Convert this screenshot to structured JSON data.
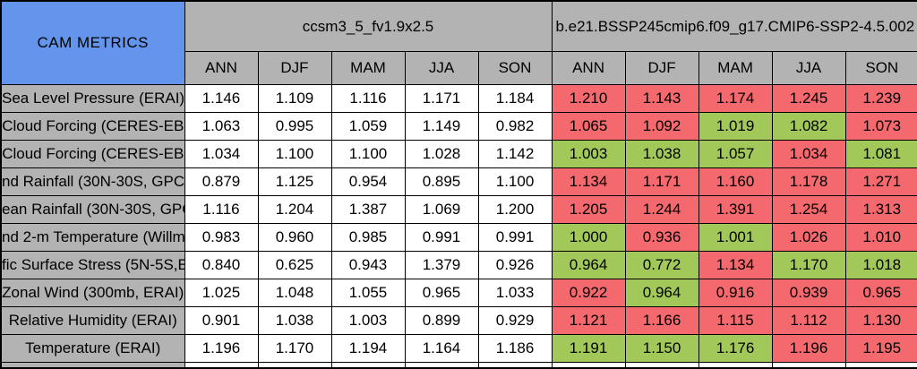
{
  "chart_data": {
    "type": "table",
    "title": "CAM METRICS",
    "column_groups": [
      "ccsm3_5_fv1.9x2.5",
      "b.e21.BSSP245cmip6.f09_g17.CMIP6-SSP2-4.5.002"
    ],
    "seasons": [
      "ANN",
      "DJF",
      "MAM",
      "JJA",
      "SON"
    ],
    "colors": {
      "header_blue": "#6495ed",
      "header_gray": "#b3b3b3",
      "cell_white": "#ffffff",
      "worse_red": "#f4696d",
      "better_green": "#a2c85a",
      "border": "#000000",
      "text": "#000000"
    },
    "rows": [
      {
        "label": "Sea Level Pressure (ERAI)",
        "control": [
          "1.146",
          "1.109",
          "1.116",
          "1.171",
          "1.184"
        ],
        "test": [
          "1.210",
          "1.143",
          "1.174",
          "1.245",
          "1.239"
        ],
        "test_colors": [
          "red",
          "red",
          "red",
          "red",
          "red"
        ]
      },
      {
        "label": "Cloud Forcing (CERES-EB",
        "control": [
          "1.063",
          "0.995",
          "1.059",
          "1.149",
          "0.982"
        ],
        "test": [
          "1.065",
          "1.092",
          "1.019",
          "1.082",
          "1.073"
        ],
        "test_colors": [
          "red",
          "red",
          "green",
          "green",
          "red"
        ]
      },
      {
        "label": "Cloud Forcing (CERES-EB",
        "control": [
          "1.034",
          "1.100",
          "1.100",
          "1.028",
          "1.142"
        ],
        "test": [
          "1.003",
          "1.038",
          "1.057",
          "1.034",
          "1.081"
        ],
        "test_colors": [
          "green",
          "green",
          "green",
          "red",
          "green"
        ]
      },
      {
        "label": "nd Rainfall (30N-30S, GPC",
        "control": [
          "0.879",
          "1.125",
          "0.954",
          "0.895",
          "1.100"
        ],
        "test": [
          "1.134",
          "1.171",
          "1.160",
          "1.178",
          "1.271"
        ],
        "test_colors": [
          "red",
          "red",
          "red",
          "red",
          "red"
        ]
      },
      {
        "label": "ean Rainfall (30N-30S, GPC",
        "control": [
          "1.116",
          "1.204",
          "1.387",
          "1.069",
          "1.200"
        ],
        "test": [
          "1.205",
          "1.244",
          "1.391",
          "1.254",
          "1.313"
        ],
        "test_colors": [
          "red",
          "red",
          "red",
          "red",
          "red"
        ]
      },
      {
        "label": "nd 2-m Temperature (Willm",
        "control": [
          "0.983",
          "0.960",
          "0.985",
          "0.991",
          "0.991"
        ],
        "test": [
          "1.000",
          "0.936",
          "1.001",
          "1.026",
          "1.010"
        ],
        "test_colors": [
          "green",
          "red",
          "green",
          "red",
          "red"
        ]
      },
      {
        "label": "fic Surface Stress (5N-5S,E",
        "control": [
          "0.840",
          "0.625",
          "0.943",
          "1.379",
          "0.926"
        ],
        "test": [
          "0.964",
          "0.772",
          "1.134",
          "1.170",
          "1.018"
        ],
        "test_colors": [
          "green",
          "green",
          "red",
          "green",
          "green"
        ]
      },
      {
        "label": "Zonal Wind (300mb, ERAI)",
        "control": [
          "1.025",
          "1.048",
          "1.055",
          "0.965",
          "1.033"
        ],
        "test": [
          "0.922",
          "0.964",
          "0.916",
          "0.939",
          "0.965"
        ],
        "test_colors": [
          "red",
          "green",
          "red",
          "red",
          "red"
        ]
      },
      {
        "label": "Relative Humidity (ERAI)",
        "control": [
          "0.901",
          "1.038",
          "1.003",
          "0.899",
          "0.929"
        ],
        "test": [
          "1.121",
          "1.166",
          "1.115",
          "1.112",
          "1.130"
        ],
        "test_colors": [
          "red",
          "red",
          "red",
          "red",
          "red"
        ]
      },
      {
        "label": "Temperature (ERAI)",
        "control": [
          "1.196",
          "1.170",
          "1.194",
          "1.164",
          "1.186"
        ],
        "test": [
          "1.191",
          "1.150",
          "1.176",
          "1.196",
          "1.195"
        ],
        "test_colors": [
          "green",
          "green",
          "green",
          "red",
          "red"
        ]
      }
    ]
  }
}
